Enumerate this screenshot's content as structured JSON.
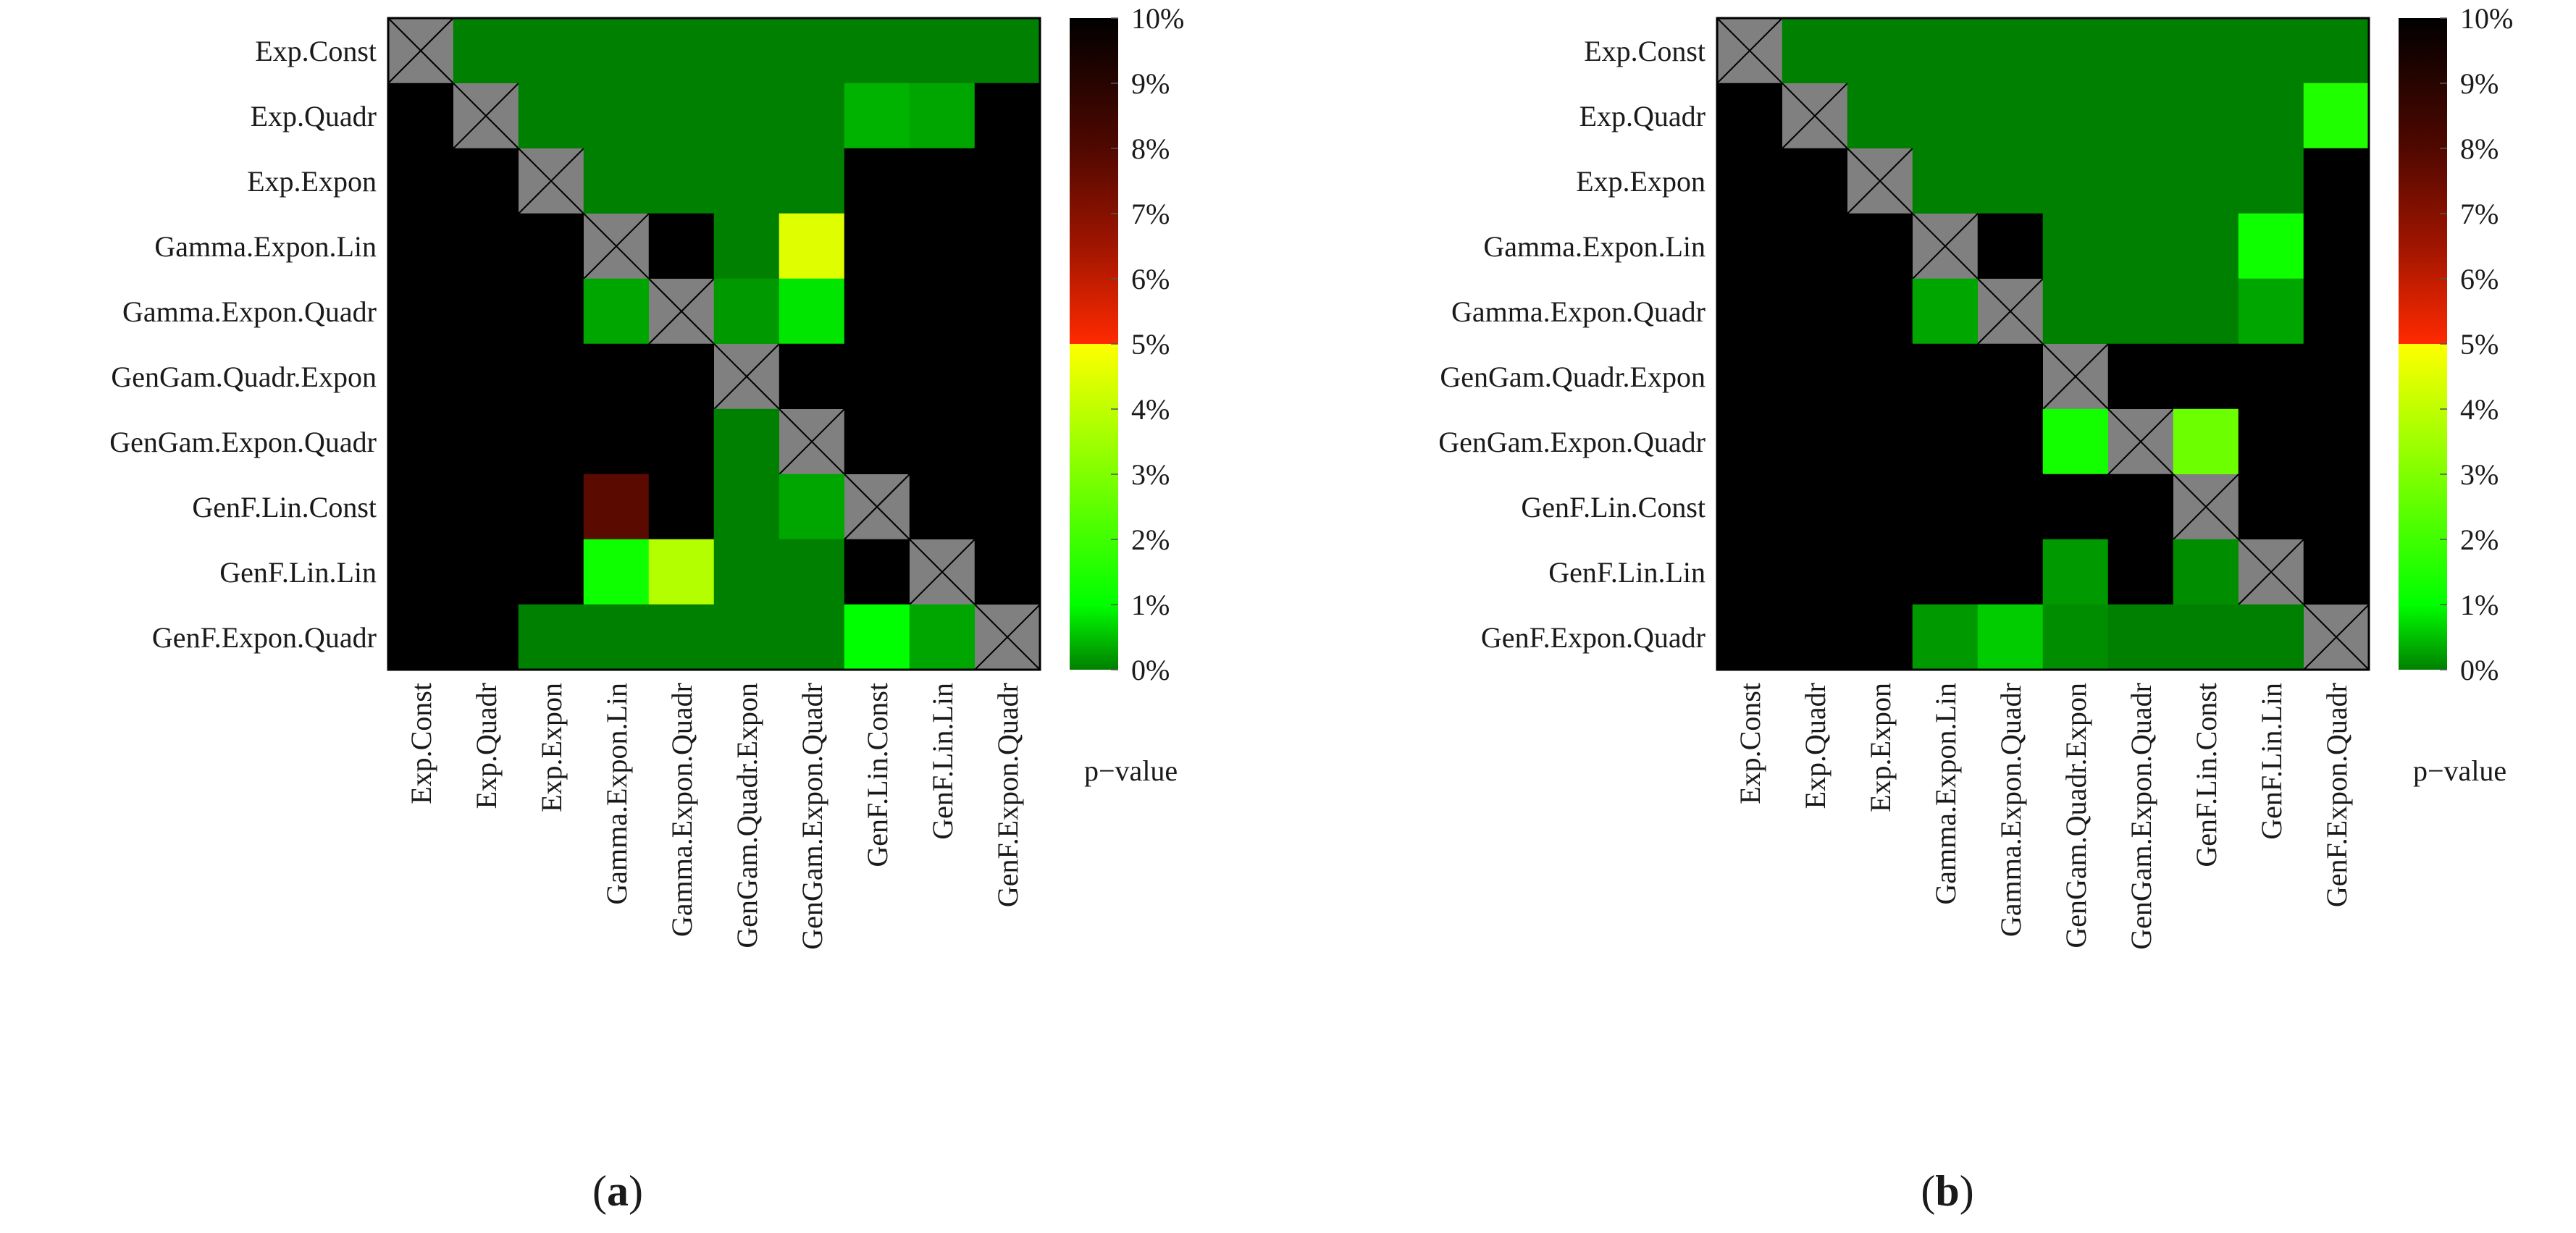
{
  "chart_data": [
    {
      "type": "heatmap",
      "caption_letter": "a",
      "title": "",
      "row_labels": [
        "Exp.Const",
        "Exp.Quadr",
        "Exp.Expon",
        "Gamma.Expon.Lin",
        "Gamma.Expon.Quadr",
        "GenGam.Quadr.Expon",
        "GenGam.Expon.Quadr",
        "GenF.Lin.Const",
        "GenF.Lin.Lin",
        "GenF.Expon.Quadr"
      ],
      "col_labels": [
        "Exp.Const",
        "Exp.Quadr",
        "Exp.Expon",
        "Gamma.Expon.Lin",
        "Gamma.Expon.Quadr",
        "GenGam.Quadr.Expon",
        "GenGam.Expon.Quadr",
        "GenF.Lin.Const",
        "GenF.Lin.Lin",
        "GenF.Expon.Quadr"
      ],
      "values_percent": [
        [
          null,
          0,
          0,
          0,
          0,
          0,
          0,
          0,
          0,
          0
        ],
        [
          10,
          null,
          0,
          0,
          0,
          0,
          0,
          0.4,
          0.3,
          10
        ],
        [
          10,
          10,
          null,
          0,
          0,
          0,
          0,
          10,
          10,
          10
        ],
        [
          10,
          10,
          10,
          null,
          10,
          0,
          4.5,
          10,
          10,
          10
        ],
        [
          10,
          10,
          10,
          0.3,
          null,
          0.2,
          0.8,
          10,
          10,
          10
        ],
        [
          10,
          10,
          10,
          10,
          10,
          null,
          10,
          10,
          10,
          10
        ],
        [
          10,
          10,
          10,
          10,
          10,
          0,
          null,
          10,
          10,
          10
        ],
        [
          10,
          10,
          10,
          7.8,
          10,
          0,
          0.3,
          null,
          10,
          10
        ],
        [
          10,
          10,
          10,
          1.2,
          3.8,
          0,
          0,
          10,
          null,
          10
        ],
        [
          10,
          10,
          0,
          0,
          0,
          0,
          0,
          1,
          0.3,
          null
        ]
      ],
      "colorbar": {
        "ticks": [
          "0%",
          "1%",
          "2%",
          "3%",
          "4%",
          "5%",
          "6%",
          "7%",
          "8%",
          "9%",
          "10%"
        ],
        "label": "p−value",
        "range": [
          0,
          10
        ]
      }
    },
    {
      "type": "heatmap",
      "caption_letter": "b",
      "title": "",
      "row_labels": [
        "Exp.Const",
        "Exp.Quadr",
        "Exp.Expon",
        "Gamma.Expon.Lin",
        "Gamma.Expon.Quadr",
        "GenGam.Quadr.Expon",
        "GenGam.Expon.Quadr",
        "GenF.Lin.Const",
        "GenF.Lin.Lin",
        "GenF.Expon.Quadr"
      ],
      "col_labels": [
        "Exp.Const",
        "Exp.Quadr",
        "Exp.Expon",
        "Gamma.Expon.Lin",
        "Gamma.Expon.Quadr",
        "GenGam.Quadr.Expon",
        "GenGam.Expon.Quadr",
        "GenF.Lin.Const",
        "GenF.Lin.Lin",
        "GenF.Expon.Quadr"
      ],
      "values_percent": [
        [
          null,
          0,
          0,
          0,
          0,
          0,
          0,
          0,
          0,
          0
        ],
        [
          10,
          null,
          0,
          0,
          0,
          0,
          0,
          0,
          0,
          1.5
        ],
        [
          10,
          10,
          null,
          0,
          0,
          0,
          0,
          0,
          0,
          10
        ],
        [
          10,
          10,
          10,
          null,
          10,
          0,
          0,
          0,
          1.2,
          10
        ],
        [
          10,
          10,
          10,
          0.3,
          null,
          0,
          0,
          0,
          0.3,
          10
        ],
        [
          10,
          10,
          10,
          10,
          10,
          null,
          10,
          10,
          10,
          10
        ],
        [
          10,
          10,
          10,
          10,
          10,
          1.3,
          null,
          2.7,
          10,
          10
        ],
        [
          10,
          10,
          10,
          10,
          10,
          10,
          10,
          null,
          10,
          10
        ],
        [
          10,
          10,
          10,
          10,
          10,
          0.2,
          10,
          0.1,
          null,
          10
        ],
        [
          10,
          10,
          10,
          0.2,
          0.6,
          0.1,
          0,
          0,
          0,
          null
        ]
      ],
      "colorbar": {
        "ticks": [
          "0%",
          "1%",
          "2%",
          "3%",
          "4%",
          "5%",
          "6%",
          "7%",
          "8%",
          "9%",
          "10%"
        ],
        "label": "p−value",
        "range": [
          0,
          10
        ]
      }
    }
  ]
}
